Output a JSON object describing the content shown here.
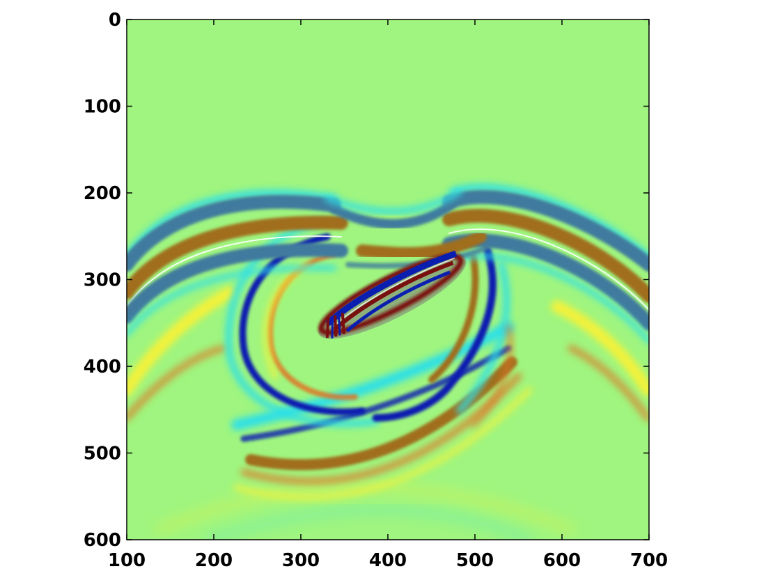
{
  "chart_data": {
    "type": "heatmap",
    "title": "",
    "xlabel": "",
    "ylabel": "",
    "xlim": [
      100,
      700
    ],
    "ylim": [
      600,
      0
    ],
    "y_axis_reversed": true,
    "grid": false,
    "colormap": "jet",
    "colorbar": false,
    "x_ticks": [
      100,
      200,
      300,
      400,
      500,
      600,
      700
    ],
    "y_ticks": [
      0,
      100,
      200,
      300,
      400,
      500,
      600
    ],
    "background_color": "#9ff57f",
    "colors": {
      "dark_blue": "#3f7a9e",
      "deep_blue": "#0a1fb0",
      "brown": "#a06e1f",
      "dark_red": "#7a0f0f",
      "orange": "#e07428",
      "yellow": "#f3f23a",
      "cyan": "#2ee0e6",
      "ellipse_fill": "#8db07a"
    },
    "features": [
      {
        "kind": "wavefront-arc",
        "band": "dark-blue/brown/dark-blue",
        "x": [
          100,
          500
        ],
        "y_top": 250,
        "y_edge": 330
      },
      {
        "kind": "wavefront-arc",
        "band": "dark-blue/brown/dark-blue",
        "x": [
          500,
          700
        ],
        "y_top": 240,
        "y_edge": 330
      },
      {
        "kind": "elliptical-scatterer",
        "center": [
          405,
          320
        ],
        "orientation": "tilted up-right",
        "x_extent": [
          320,
          490
        ],
        "y_extent": [
          262,
          370
        ]
      },
      {
        "kind": "scattered-ring",
        "center": [
          420,
          420
        ],
        "x_extent": [
          330,
          560
        ],
        "y_extent": [
          330,
          550
        ]
      },
      {
        "kind": "scattered-arc",
        "x": [
          250,
          650
        ],
        "y": 540
      }
    ]
  }
}
